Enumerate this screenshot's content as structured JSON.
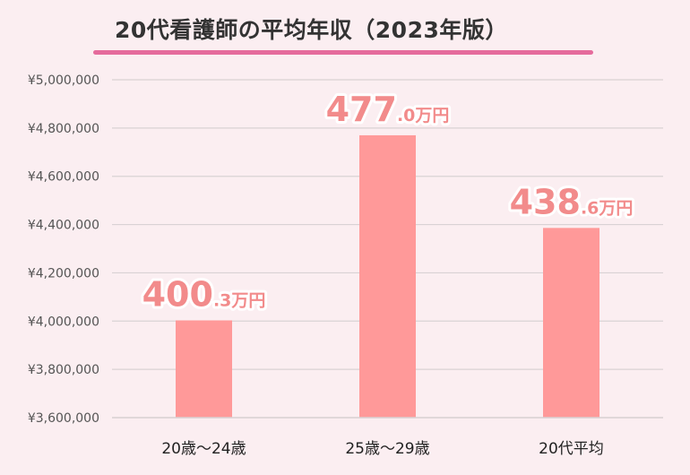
{
  "chart_data": {
    "type": "bar",
    "title": "20代看護師の平均年収（2023年版）",
    "categories": [
      "20歳～24歳",
      "25歳～29歳",
      "20代平均"
    ],
    "values": [
      4003000,
      4770000,
      4386000
    ],
    "data_labels": [
      {
        "main": "400",
        "small": ".3万円"
      },
      {
        "main": "477",
        "small": ".0万円"
      },
      {
        "main": "438",
        "small": ".6万円"
      }
    ],
    "ylim": [
      3600000,
      5000000
    ],
    "yticks": [
      3600000,
      3800000,
      4000000,
      4200000,
      4400000,
      4600000,
      4800000,
      5000000
    ],
    "ytick_labels": [
      "¥3,600,000",
      "¥3,800,000",
      "¥4,000,000",
      "¥4,200,000",
      "¥4,400,000",
      "¥4,600,000",
      "¥4,800,000",
      "¥5,000,000"
    ],
    "xlabel": "",
    "ylabel": "",
    "grid": true,
    "colors": {
      "bar": "#ff9999",
      "label": "#f28b8b",
      "grid": "#d9d2d4",
      "underline": "#e56b9c",
      "background": "#fbeef1"
    }
  }
}
